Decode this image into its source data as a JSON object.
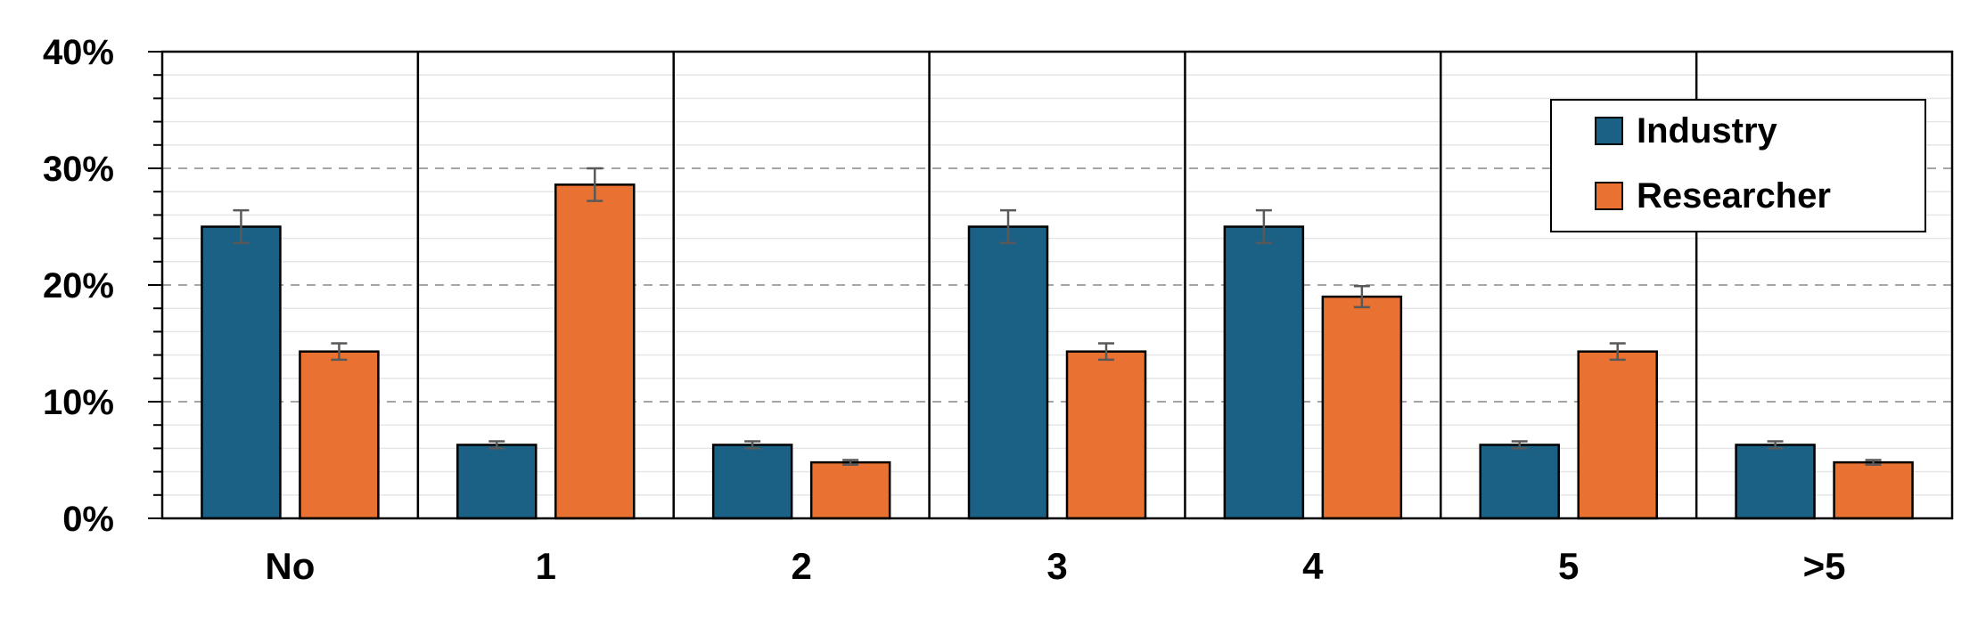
{
  "chart_data": {
    "type": "bar",
    "title": "",
    "xlabel": "",
    "ylabel": "",
    "categories": [
      "No",
      "1",
      "2",
      "3",
      "4",
      "5",
      ">5"
    ],
    "ylim": [
      0,
      40
    ],
    "yticks": [
      "0%",
      "10%",
      "20%",
      "30%",
      "40%"
    ],
    "grid": "dashed major, light minor",
    "legend_position": "top-right",
    "series": [
      {
        "name": "Industry",
        "color": "#1a6185",
        "values": [
          25.0,
          6.3,
          6.3,
          25.0,
          25.0,
          6.3,
          6.3
        ],
        "errors": [
          1.4,
          0.3,
          0.3,
          1.4,
          1.4,
          0.3,
          0.3
        ]
      },
      {
        "name": "Researcher",
        "color": "#e97132",
        "values": [
          14.3,
          28.6,
          4.8,
          14.3,
          19.0,
          14.3,
          4.8
        ],
        "errors": [
          0.7,
          1.4,
          0.2,
          0.7,
          0.9,
          0.7,
          0.2
        ]
      }
    ]
  }
}
